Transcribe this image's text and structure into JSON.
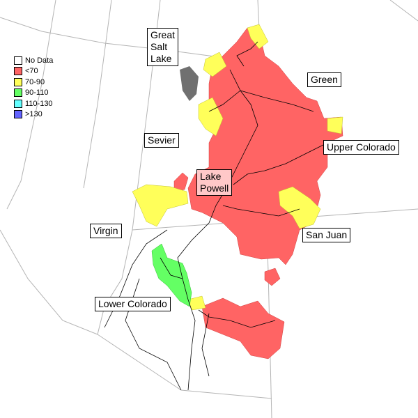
{
  "legend": [
    {
      "label": "No Data",
      "color": "#ffffff"
    },
    {
      "label": "<70",
      "color": "#ff6464"
    },
    {
      "label": "70-90",
      "color": "#ffff5a"
    },
    {
      "label": "90-110",
      "color": "#64ff64"
    },
    {
      "label": "110-130",
      "color": "#64ffff"
    },
    {
      "label": ">130",
      "color": "#6464ff"
    }
  ],
  "labels": {
    "great_salt_lake": "Great\nSalt\nLake",
    "green": "Green",
    "upper_colorado": "Upper Colorado",
    "sevier": "Sevier",
    "lake_powell": "Lake\nPowell",
    "virgin": "Virgin",
    "san_juan": "San Juan",
    "lower_colorado": "Lower Colorado"
  },
  "colors": {
    "no_data_lake": "#707070",
    "lake_powell_box": "#ffc8c8",
    "border": "#b4b4b4",
    "rivers": "#000000"
  }
}
